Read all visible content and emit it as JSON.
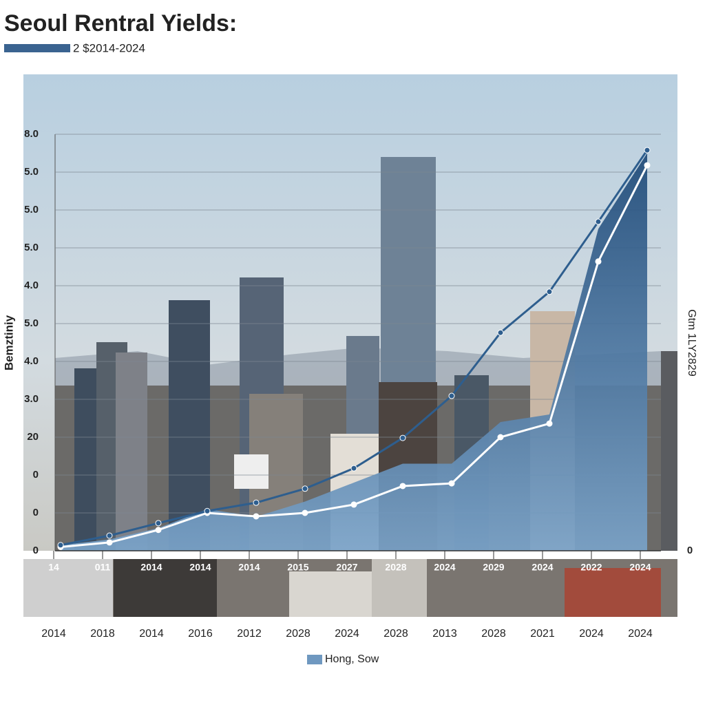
{
  "chart_data": {
    "type": "line",
    "title": "Seoul Rentral Yields:",
    "subtitle": "2 $2014-2024",
    "y_label": "Bemztiniy",
    "y2_label": "Gtm 1LY2829",
    "categories": [
      "2014",
      "2018",
      "2014",
      "2016",
      "2012",
      "2028",
      "2024",
      "2028",
      "2013",
      "2028",
      "2021",
      "2024",
      "2024"
    ],
    "secondary_labels": [
      "14",
      "011",
      "2014",
      "2014",
      "2014",
      "2015",
      "2027",
      "2028",
      "2024",
      "2029",
      "2024",
      "2022",
      "2024"
    ],
    "ylim": [
      0,
      11
    ],
    "yticks": [
      {
        "value": 0,
        "label": "0"
      },
      {
        "value": 1,
        "label": "0"
      },
      {
        "value": 2,
        "label": "0"
      },
      {
        "value": 3,
        "label": "20"
      },
      {
        "value": 4,
        "label": "3.0"
      },
      {
        "value": 5,
        "label": "4.0"
      },
      {
        "value": 6,
        "label": "5.0"
      },
      {
        "value": 7,
        "label": "4.0"
      },
      {
        "value": 8,
        "label": "5.0"
      },
      {
        "value": 9,
        "label": "5.0"
      },
      {
        "value": 10,
        "label": "5.0"
      },
      {
        "value": 11,
        "label": "8.0"
      }
    ],
    "y2lim": [
      0,
      11
    ],
    "y2ticks": [
      0
    ],
    "grid": true,
    "series": [
      {
        "name": "Hong, Sow",
        "kind": "area",
        "color": "#6f98c0",
        "values": [
          0.15,
          0.3,
          0.6,
          1.1,
          0.9,
          1.3,
          1.8,
          2.3,
          2.3,
          3.4,
          3.6,
          8.5,
          10.5
        ]
      },
      {
        "kind": "line",
        "color": "#ffffff",
        "values": [
          0.1,
          0.22,
          0.55,
          1.0,
          0.91,
          1.0,
          1.22,
          1.71,
          1.78,
          3.0,
          3.36,
          7.64,
          10.18
        ]
      },
      {
        "kind": "line",
        "color": "#2e5e8e",
        "values": [
          0.15,
          0.4,
          0.73,
          1.05,
          1.27,
          1.64,
          2.18,
          2.98,
          4.09,
          5.76,
          6.84,
          8.69,
          10.58
        ]
      }
    ]
  }
}
